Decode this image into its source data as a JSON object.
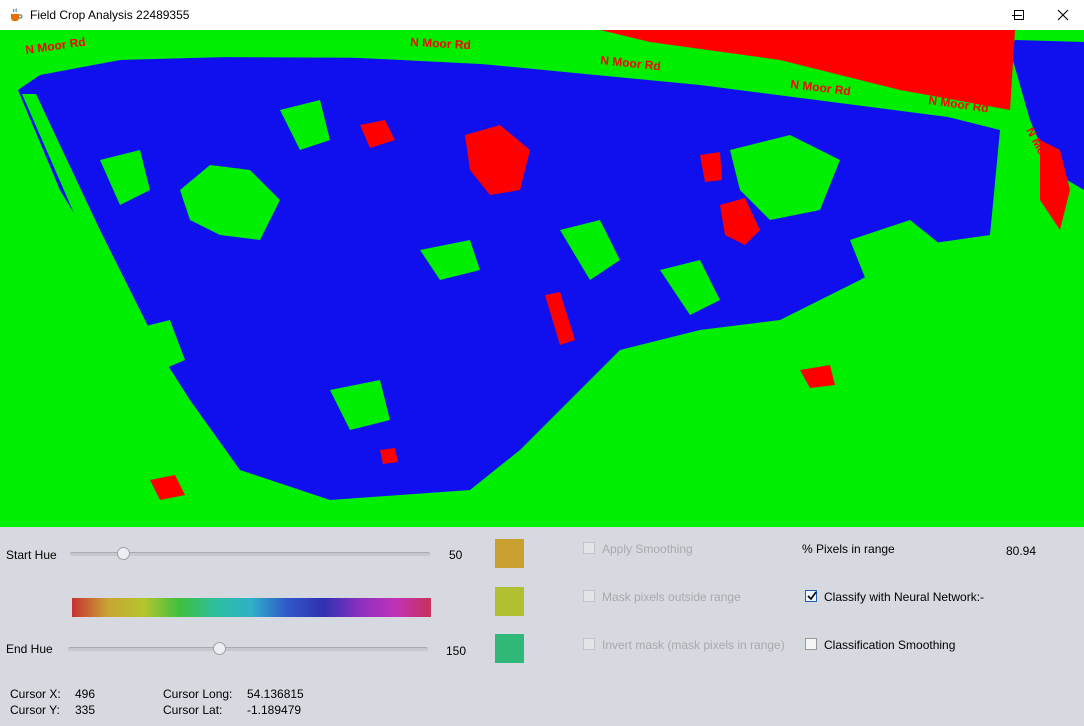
{
  "window": {
    "title": "Field Crop Analysis 22489355",
    "icon": "java-coffee-icon"
  },
  "map": {
    "colors": {
      "background": "#1010ee",
      "vegetation": "#00ee00",
      "feature": "#ff0000"
    },
    "road_labels": [
      "N Moor Rd",
      "N Moor Rd",
      "N Moor Rd",
      "N Moor Rd",
      "N Moor Rd",
      "N Moor Rd"
    ]
  },
  "controls": {
    "start_hue": {
      "label": "Start Hue",
      "value": "50",
      "fraction": 0.146
    },
    "end_hue": {
      "label": "End Hue",
      "value": "150",
      "fraction": 0.42
    },
    "swatches": [
      "#c9a030",
      "#b0c030",
      "#30b878"
    ],
    "checkboxes": {
      "apply_smoothing": {
        "label": "Apply Smoothing",
        "checked": false,
        "enabled": false
      },
      "mask_outside": {
        "label": "Mask pixels outside range",
        "checked": false,
        "enabled": false
      },
      "invert_mask": {
        "label": "Invert mask (mask pixels in range)",
        "checked": false,
        "enabled": false
      },
      "classify_nn": {
        "label": "Classify with Neural Network:-",
        "checked": true,
        "enabled": true
      },
      "classification_smoothing": {
        "label": "Classification Smoothing",
        "checked": false,
        "enabled": true
      }
    },
    "pixels_in_range": {
      "label": "% Pixels in range",
      "value": "80.94"
    }
  },
  "cursor": {
    "x_label": "Cursor X:",
    "x_value": "496",
    "y_label": "Cursor Y:",
    "y_value": "335",
    "long_label": "Cursor Long:",
    "long_value": "54.136815",
    "lat_label": "Cursor Lat:",
    "lat_value": "-1.189479"
  }
}
